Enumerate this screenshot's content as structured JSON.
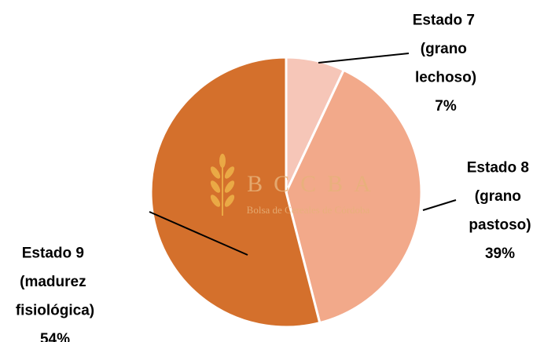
{
  "chart_data": {
    "type": "pie",
    "categories": [
      "Estado 7 (grano lechoso)",
      "Estado 8 (grano pastoso)",
      "Estado 9 (madurez fisiológica)"
    ],
    "values": [
      7,
      39,
      54
    ],
    "value_labels": [
      "7%",
      "39%",
      "54%"
    ],
    "colors": [
      "#f6c6b8",
      "#f2a98a",
      "#d4702c"
    ]
  },
  "watermark": {
    "title": "BCCBA",
    "subtitle": "Bolsa de Cereales de Córdoba"
  }
}
